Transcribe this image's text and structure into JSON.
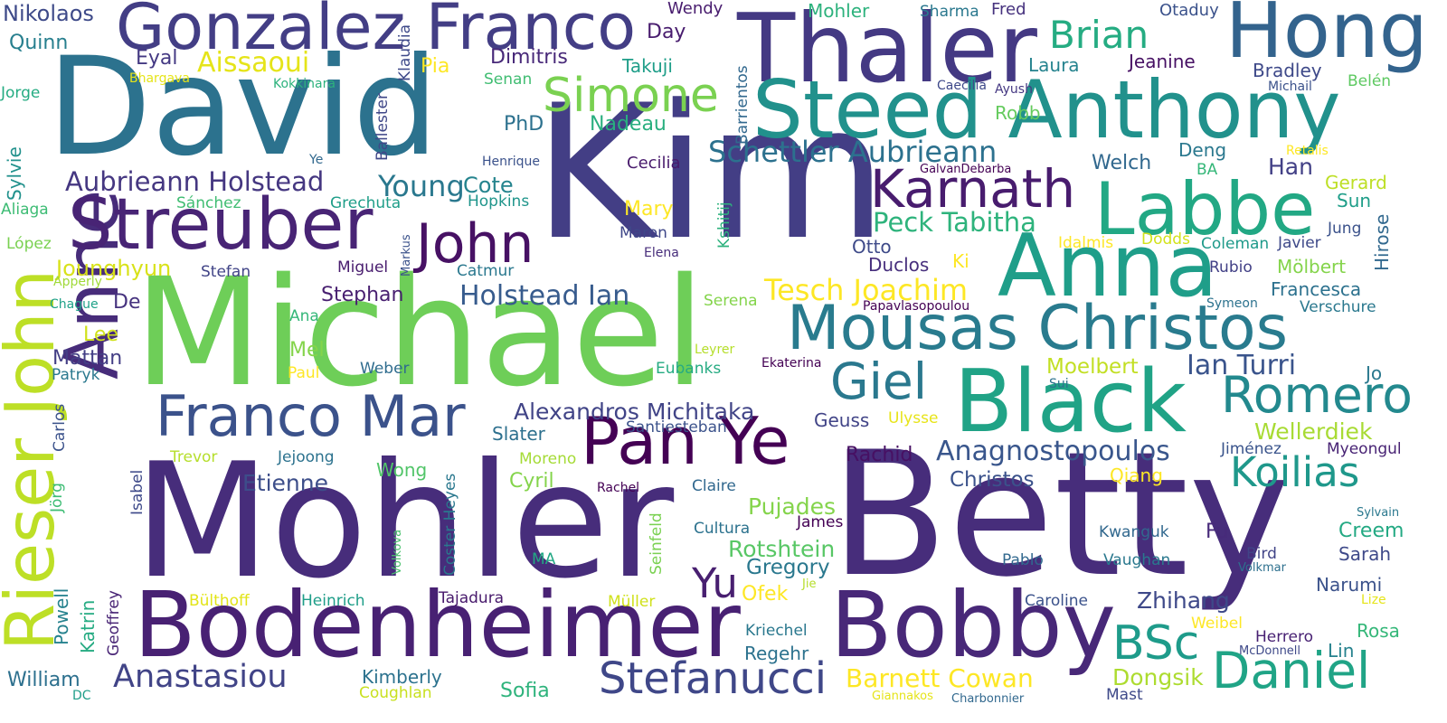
{
  "words": [
    {
      "text": "Mohler",
      "color": "#472d7b"
    },
    {
      "text": "Betty",
      "color": "#472d7b"
    },
    {
      "text": "Kim",
      "color": "#433e85"
    },
    {
      "text": "Michael",
      "color": "#6ece58"
    },
    {
      "text": "David",
      "color": "#2c728e"
    },
    {
      "text": "Thaler",
      "color": "#443983"
    },
    {
      "text": "Anna",
      "color": "#1f9e89"
    },
    {
      "text": "Black",
      "color": "#20a386"
    },
    {
      "text": "Bodenheimer",
      "color": "#482173"
    },
    {
      "text": "Bobby",
      "color": "#482878"
    },
    {
      "text": "Steed Anthony",
      "color": "#21918c"
    },
    {
      "text": "Hong",
      "color": "#33638d"
    },
    {
      "text": "Gonzalez Franco",
      "color": "#433e85"
    },
    {
      "text": "Labbe",
      "color": "#22a884"
    },
    {
      "text": "Anne",
      "color": "#472c7a"
    },
    {
      "text": "Rieser John",
      "color": "#bddf26"
    },
    {
      "text": "Streuber",
      "color": "#482475"
    },
    {
      "text": "Pan Ye",
      "color": "#440154"
    },
    {
      "text": "Mousas Christos",
      "color": "#297b8e"
    },
    {
      "text": "Franco Mar",
      "color": "#3b528b"
    },
    {
      "text": "Simone",
      "color": "#7ad151"
    },
    {
      "text": "Karnath",
      "color": "#481c6e"
    },
    {
      "text": "Romero",
      "color": "#23898e"
    },
    {
      "text": "Daniel",
      "color": "#20a486"
    },
    {
      "text": "BSc",
      "color": "#1e9b8a"
    },
    {
      "text": "Stefanucci",
      "color": "#3f4788"
    },
    {
      "text": "Anastasiou",
      "color": "#414487"
    },
    {
      "text": "Giel",
      "color": "#2a788e"
    },
    {
      "text": "Koilias",
      "color": "#1f988b"
    },
    {
      "text": "John",
      "color": "#471164"
    },
    {
      "text": "Brian",
      "color": "#25ac82"
    },
    {
      "text": "Yu",
      "color": "#481f70"
    },
    {
      "text": "Tesch Joachim",
      "color": "#fde725"
    },
    {
      "text": "Schettler Aubrieann",
      "color": "#2c718e"
    },
    {
      "text": "Aubrieann Holstead",
      "color": "#453781"
    },
    {
      "text": "Peck Tabitha",
      "color": "#2eb37c"
    },
    {
      "text": "Holstead Ian",
      "color": "#375b8d"
    },
    {
      "text": "Anagnostopoulos",
      "color": "#39568c"
    },
    {
      "text": "Alexandros Michitaka",
      "color": "#414487"
    },
    {
      "text": "Young",
      "color": "#2a788e"
    },
    {
      "text": "Cote",
      "color": "#25848e"
    },
    {
      "text": "Jounghyun",
      "color": "#d8e219"
    },
    {
      "text": "Aissaoui",
      "color": "#e5e419"
    },
    {
      "text": "Ian Turri",
      "color": "#3a548c"
    },
    {
      "text": "Moelbert",
      "color": "#c2df23"
    },
    {
      "text": "Wellerdiek",
      "color": "#a8db34"
    },
    {
      "text": "Barnett Cowan",
      "color": "#fde725"
    },
    {
      "text": "Pujades",
      "color": "#84d44b"
    },
    {
      "text": "Rotshtein",
      "color": "#58c765"
    },
    {
      "text": "Gregory",
      "color": "#2a788e"
    },
    {
      "text": "Christos",
      "color": "#3b528b"
    },
    {
      "text": "Etienne",
      "color": "#3d4e8a"
    },
    {
      "text": "Zhihang",
      "color": "#3e4989"
    },
    {
      "text": "Dongsik",
      "color": "#addc30"
    },
    {
      "text": "Nikolaos",
      "color": "#3e4a89"
    },
    {
      "text": "Quinn",
      "color": "#277f8e"
    },
    {
      "text": "Eyal",
      "color": "#443983"
    },
    {
      "text": "Dimitris",
      "color": "#482979"
    },
    {
      "text": "Takuji",
      "color": "#1f9e89"
    },
    {
      "text": "Mohler",
      "color": "#2db27d"
    },
    {
      "text": "Sharma",
      "color": "#2a788e"
    },
    {
      "text": "Fred",
      "color": "#46327e"
    },
    {
      "text": "Otaduy",
      "color": "#3b528b"
    },
    {
      "text": "Wendy",
      "color": "#481c6e"
    },
    {
      "text": "Day",
      "color": "#481c6e"
    },
    {
      "text": "Pia",
      "color": "#fde725"
    },
    {
      "text": "Laura",
      "color": "#25838e"
    },
    {
      "text": "Jeanine",
      "color": "#471164"
    },
    {
      "text": "Bradley",
      "color": "#3e4989"
    },
    {
      "text": "Michail",
      "color": "#3b528b"
    },
    {
      "text": "Belén",
      "color": "#5ec962"
    },
    {
      "text": "Bhargava",
      "color": "#e5e419"
    },
    {
      "text": "Kokkinara",
      "color": "#2db27d"
    },
    {
      "text": "Senan",
      "color": "#40bd72"
    },
    {
      "text": "Caecilia",
      "color": "#3e4989"
    },
    {
      "text": "Ayush",
      "color": "#453882"
    },
    {
      "text": "Jorge",
      "color": "#25ac82"
    },
    {
      "text": "PhD",
      "color": "#2c718e"
    },
    {
      "text": "Nadeau",
      "color": "#29af7f"
    },
    {
      "text": "Robb",
      "color": "#65cb5e"
    },
    {
      "text": "Deng",
      "color": "#2a788e"
    },
    {
      "text": "Welch",
      "color": "#31688e"
    },
    {
      "text": "Han",
      "color": "#424086"
    },
    {
      "text": "Gerard",
      "color": "#bddf26"
    },
    {
      "text": "Ye",
      "color": "#31688e"
    },
    {
      "text": "Henrique",
      "color": "#3b528b"
    },
    {
      "text": "Cecilia",
      "color": "#481a6c"
    },
    {
      "text": "GalvanDebarba",
      "color": "#440154"
    },
    {
      "text": "Retalis",
      "color": "#fde725"
    },
    {
      "text": "BA",
      "color": "#35b779"
    },
    {
      "text": "Sun",
      "color": "#1f9e89"
    },
    {
      "text": "Aliaga",
      "color": "#3dbc74"
    },
    {
      "text": "Sánchez",
      "color": "#40bd72"
    },
    {
      "text": "Grechuta",
      "color": "#1f9e89"
    },
    {
      "text": "Hopkins",
      "color": "#1f958b"
    },
    {
      "text": "Mary",
      "color": "#fde725"
    },
    {
      "text": "Jung",
      "color": "#3b528b"
    },
    {
      "text": "López",
      "color": "#7ad151"
    },
    {
      "text": "Maron",
      "color": "#3f4788"
    },
    {
      "text": "Elena",
      "color": "#472d7b"
    },
    {
      "text": "Otto",
      "color": "#3e4a89"
    },
    {
      "text": "Idalmis",
      "color": "#fde725"
    },
    {
      "text": "Dodds",
      "color": "#d2e21b"
    },
    {
      "text": "Coleman",
      "color": "#1f9a8a"
    },
    {
      "text": "Javier",
      "color": "#3e4989"
    },
    {
      "text": "Stefan",
      "color": "#414487"
    },
    {
      "text": "Miguel",
      "color": "#481c6e"
    },
    {
      "text": "Catmur",
      "color": "#2a788e"
    },
    {
      "text": "Duclos",
      "color": "#472f7d"
    },
    {
      "text": "Ki",
      "color": "#fde725"
    },
    {
      "text": "Rubio",
      "color": "#424086"
    },
    {
      "text": "Mölbert",
      "color": "#84d44b"
    },
    {
      "text": "Apperly",
      "color": "#a0da39"
    },
    {
      "text": "Chague",
      "color": "#1fa188"
    },
    {
      "text": "Stephan",
      "color": "#481f70"
    },
    {
      "text": "De",
      "color": "#46327e"
    },
    {
      "text": "Serena",
      "color": "#84d44b"
    },
    {
      "text": "Papavlasopoulou",
      "color": "#440154"
    },
    {
      "text": "Symeon",
      "color": "#2c728e"
    },
    {
      "text": "Francesca",
      "color": "#2c718e"
    },
    {
      "text": "Verschure",
      "color": "#2a788e"
    },
    {
      "text": "Ana",
      "color": "#35b779"
    },
    {
      "text": "Lee",
      "color": "#d0e11c"
    },
    {
      "text": "Mel",
      "color": "#84d44b"
    },
    {
      "text": "Mattan",
      "color": "#433e85"
    },
    {
      "text": "Leyrer",
      "color": "#b5de2b"
    },
    {
      "text": "Patryk",
      "color": "#2a788e"
    },
    {
      "text": "Paul",
      "color": "#fde725"
    },
    {
      "text": "Weber",
      "color": "#2f6c8e"
    },
    {
      "text": "Eubanks",
      "color": "#25ab82"
    },
    {
      "text": "Ekaterina",
      "color": "#440154"
    },
    {
      "text": "Sui",
      "color": "#2c728e"
    },
    {
      "text": "Jo",
      "color": "#2a788e"
    },
    {
      "text": "Geuss",
      "color": "#414487"
    },
    {
      "text": "Ulysse",
      "color": "#e7e419"
    },
    {
      "text": "Santiesteban",
      "color": "#3b528b"
    },
    {
      "text": "Slater",
      "color": "#2d708e"
    },
    {
      "text": "Rachid",
      "color": "#471063"
    },
    {
      "text": "Jiménez",
      "color": "#3a548c"
    },
    {
      "text": "Myeongul",
      "color": "#482374"
    },
    {
      "text": "Trevor",
      "color": "#b5de2b"
    },
    {
      "text": "Jejoong",
      "color": "#2c728e"
    },
    {
      "text": "Wong",
      "color": "#52c569"
    },
    {
      "text": "Moreno",
      "color": "#a5db36"
    },
    {
      "text": "Cyril",
      "color": "#84d44b"
    },
    {
      "text": "Qiang",
      "color": "#fde725"
    },
    {
      "text": "Rachel",
      "color": "#440154"
    },
    {
      "text": "Claire",
      "color": "#31688e"
    },
    {
      "text": "James",
      "color": "#440154"
    },
    {
      "text": "Sylvain",
      "color": "#2a788e"
    },
    {
      "text": "Creem",
      "color": "#23a983"
    },
    {
      "text": "Cultura",
      "color": "#2c728e"
    },
    {
      "text": "MA",
      "color": "#22a884"
    },
    {
      "text": "Ofek",
      "color": "#fde725"
    },
    {
      "text": "Jie",
      "color": "#b5de2b"
    },
    {
      "text": "Kwanguk",
      "color": "#31688e"
    },
    {
      "text": "Fu",
      "color": "#472a7a"
    },
    {
      "text": "Sarah",
      "color": "#3e4989"
    },
    {
      "text": "Pablo",
      "color": "#31688e"
    },
    {
      "text": "Bird",
      "color": "#414487"
    },
    {
      "text": "Vaughan",
      "color": "#2a788e"
    },
    {
      "text": "Volkmar",
      "color": "#2d708e"
    },
    {
      "text": "Narumi",
      "color": "#3b528b"
    },
    {
      "text": "Lize",
      "color": "#e5e419"
    },
    {
      "text": "Bülthoff",
      "color": "#e2e418"
    },
    {
      "text": "Heinrich",
      "color": "#1f9e89"
    },
    {
      "text": "Tajadura",
      "color": "#481a6c"
    },
    {
      "text": "Müller",
      "color": "#d0e11c"
    },
    {
      "text": "Caroline",
      "color": "#3b528b"
    },
    {
      "text": "Weibel",
      "color": "#fde725"
    },
    {
      "text": "Herrero",
      "color": "#482173"
    },
    {
      "text": "Rosa",
      "color": "#35b779"
    },
    {
      "text": "McDonnell",
      "color": "#3e4989"
    },
    {
      "text": "Lin",
      "color": "#26828e"
    },
    {
      "text": "Kriechel",
      "color": "#2a788e"
    },
    {
      "text": "Regehr",
      "color": "#2c728e"
    },
    {
      "text": "William",
      "color": "#2d708e"
    },
    {
      "text": "DC",
      "color": "#1f9e89"
    },
    {
      "text": "Kimberly",
      "color": "#2c728e"
    },
    {
      "text": "Coughlan",
      "color": "#c8e020"
    },
    {
      "text": "Sofia",
      "color": "#2eb37c"
    },
    {
      "text": "Giannakos",
      "color": "#e5e419"
    },
    {
      "text": "Charbonnier",
      "color": "#31688e"
    },
    {
      "text": "Mast",
      "color": "#3e4989"
    },
    {
      "text": "Klaudia",
      "color": "#3e4989"
    },
    {
      "text": "Ballester",
      "color": "#3f4788"
    },
    {
      "text": "Barrientos",
      "color": "#31688e"
    },
    {
      "text": "Sylvie",
      "color": "#21918c"
    },
    {
      "text": "Markus",
      "color": "#3b528b"
    },
    {
      "text": "Kshitij",
      "color": "#2db27d"
    },
    {
      "text": "Hirose",
      "color": "#31688e"
    },
    {
      "text": "Carlos",
      "color": "#3b528b"
    },
    {
      "text": "Isabel",
      "color": "#3e4989"
    },
    {
      "text": "Jörg",
      "color": "#3dbc74"
    },
    {
      "text": "Coster Heyes",
      "color": "#2a788e"
    },
    {
      "text": "Seinfeld",
      "color": "#7ad151"
    },
    {
      "text": "Volkova",
      "color": "#4ac16d"
    },
    {
      "text": "Powell",
      "color": "#26828e"
    },
    {
      "text": "Katrin",
      "color": "#25ab82"
    },
    {
      "text": "Geoffrey",
      "color": "#482475"
    }
  ]
}
